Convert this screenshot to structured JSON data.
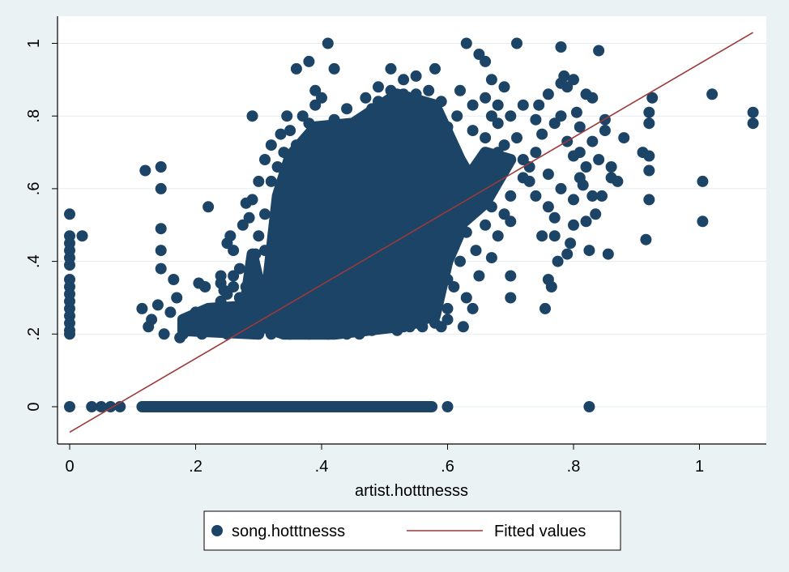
{
  "chart_data": {
    "type": "scatter",
    "xlabel": "artist.hotttnesss",
    "ylabel": "",
    "xlim": [
      0,
      1.1
    ],
    "ylim": [
      -0.08,
      1.05
    ],
    "x_ticks": [
      {
        "value": 0,
        "label": "0"
      },
      {
        "value": 0.2,
        "label": ".2"
      },
      {
        "value": 0.4,
        "label": ".4"
      },
      {
        "value": 0.6,
        "label": ".6"
      },
      {
        "value": 0.8,
        "label": ".8"
      },
      {
        "value": 1,
        "label": "1"
      }
    ],
    "y_ticks": [
      {
        "value": 0,
        "label": "0"
      },
      {
        "value": 0.2,
        "label": ".2"
      },
      {
        "value": 0.4,
        "label": ".4"
      },
      {
        "value": 0.6,
        "label": ".6"
      },
      {
        "value": 0.8,
        "label": ".8"
      },
      {
        "value": 1,
        "label": "1"
      }
    ],
    "grid": "horizontal",
    "legend_position": "bottom",
    "colors": {
      "points": "#1c4466",
      "fit_line": "#9c3a3a",
      "plot_bg": "#ffffff",
      "outer_bg": "#eaf2f3",
      "grid": "#e3ecf0"
    },
    "series": [
      {
        "name": "song.hotttnesss",
        "kind": "scatter",
        "points": [
          [
            0,
            0
          ],
          [
            0,
            0.2
          ],
          [
            0,
            0.21
          ],
          [
            0,
            0.23
          ],
          [
            0,
            0.25
          ],
          [
            0,
            0.27
          ],
          [
            0,
            0.29
          ],
          [
            0,
            0.31
          ],
          [
            0,
            0.33
          ],
          [
            0,
            0.35
          ],
          [
            0,
            0.39
          ],
          [
            0,
            0.41
          ],
          [
            0,
            0.43
          ],
          [
            0,
            0.45
          ],
          [
            0,
            0.47
          ],
          [
            0,
            0.53
          ],
          [
            0.02,
            0.47
          ],
          [
            0.035,
            0
          ],
          [
            0.05,
            0
          ],
          [
            0.065,
            0
          ],
          [
            0.08,
            0
          ],
          [
            0.115,
            0.27
          ],
          [
            0.12,
            0.65
          ],
          [
            0.125,
            0.22
          ],
          [
            0.13,
            0.24
          ],
          [
            0.14,
            0.28
          ],
          [
            0.145,
            0.66
          ],
          [
            0.145,
            0.6
          ],
          [
            0.145,
            0.49
          ],
          [
            0.145,
            0.43
          ],
          [
            0.145,
            0.38
          ],
          [
            0.15,
            0.2
          ],
          [
            0.16,
            0.26
          ],
          [
            0.165,
            0.35
          ],
          [
            0.17,
            0.3
          ],
          [
            0.175,
            0.19
          ],
          [
            0.18,
            0.2
          ],
          [
            0.2,
            0.26
          ],
          [
            0.205,
            0.34
          ],
          [
            0.21,
            0.2
          ],
          [
            0.215,
            0.33
          ],
          [
            0.22,
            0.55
          ],
          [
            0.225,
            0.21
          ],
          [
            0.23,
            0.25
          ],
          [
            0.235,
            0.26
          ],
          [
            0.24,
            0.34
          ],
          [
            0.245,
            0.32
          ],
          [
            0.25,
            0.45
          ],
          [
            0.255,
            0.47
          ],
          [
            0.26,
            0.36
          ],
          [
            0.265,
            0.23
          ],
          [
            0.27,
            0.3
          ],
          [
            0.275,
            0.5
          ],
          [
            0.28,
            0.56
          ],
          [
            0.285,
            0.52
          ],
          [
            0.29,
            0.8
          ],
          [
            0.295,
            0.42
          ],
          [
            0.3,
            0.62
          ],
          [
            0.31,
            0.68
          ],
          [
            0.32,
            0.72
          ],
          [
            0.335,
            0.75
          ],
          [
            0.345,
            0.8
          ],
          [
            0.36,
            0.93
          ],
          [
            0.38,
            0.95
          ],
          [
            0.39,
            0.87
          ],
          [
            0.4,
            0.85
          ],
          [
            0.41,
            1.0
          ],
          [
            0.42,
            0.93
          ],
          [
            0.44,
            0.82
          ],
          [
            0.47,
            0.85
          ],
          [
            0.49,
            0.88
          ],
          [
            0.51,
            0.93
          ],
          [
            0.53,
            0.9
          ],
          [
            0.55,
            0.86
          ],
          [
            0.58,
            0.93
          ],
          [
            0.59,
            0.84
          ],
          [
            0.6,
            0.5
          ],
          [
            0.61,
            0.44
          ],
          [
            0.62,
            0.87
          ],
          [
            0.625,
            0.22
          ],
          [
            0.63,
            1.0
          ],
          [
            0.64,
            0.27
          ],
          [
            0.65,
            0.97
          ],
          [
            0.66,
            0.95
          ],
          [
            0.67,
            0.9
          ],
          [
            0.68,
            0.83
          ],
          [
            0.69,
            0.72
          ],
          [
            0.7,
            0.51
          ],
          [
            0.7,
            0.36
          ],
          [
            0.7,
            0.3
          ],
          [
            0.71,
            1.0
          ],
          [
            0.72,
            0.63
          ],
          [
            0.73,
            0.62
          ],
          [
            0.74,
            0.58
          ],
          [
            0.745,
            0.83
          ],
          [
            0.75,
            0.47
          ],
          [
            0.755,
            0.27
          ],
          [
            0.76,
            0.35
          ],
          [
            0.765,
            0.33
          ],
          [
            0.77,
            0.78
          ],
          [
            0.775,
            0.4
          ],
          [
            0.78,
            0.99
          ],
          [
            0.785,
            0.91
          ],
          [
            0.79,
            0.88
          ],
          [
            0.795,
            0.45
          ],
          [
            0.8,
            0.69
          ],
          [
            0.805,
            0.81
          ],
          [
            0.81,
            0.77
          ],
          [
            0.815,
            0.61
          ],
          [
            0.82,
            0.51
          ],
          [
            0.825,
            0.43
          ],
          [
            0.83,
            0.85
          ],
          [
            0.835,
            0.53
          ],
          [
            0.84,
            0.98
          ],
          [
            0.845,
            0.58
          ],
          [
            0.85,
            0.79
          ],
          [
            0.855,
            0.42
          ],
          [
            0.86,
            0.66
          ],
          [
            0.87,
            0.62
          ],
          [
            0.88,
            0.74
          ],
          [
            0.91,
            0.7
          ],
          [
            0.915,
            0.46
          ],
          [
            0.92,
            0.81
          ],
          [
            0.92,
            0.78
          ],
          [
            0.92,
            0.69
          ],
          [
            0.92,
            0.65
          ],
          [
            0.92,
            0.57
          ],
          [
            0.925,
            0.85
          ],
          [
            1.005,
            0.62
          ],
          [
            1.005,
            0.51
          ],
          [
            1.02,
            0.86
          ],
          [
            1.085,
            0.81
          ],
          [
            1.085,
            0.78
          ],
          [
            0.59,
            0.22
          ],
          [
            0.58,
            0.3
          ],
          [
            0.6,
            0.35
          ],
          [
            0.575,
            0.4
          ],
          [
            0.57,
            0.75
          ],
          [
            0.6,
            0.77
          ],
          [
            0.615,
            0.8
          ],
          [
            0.64,
            0.76
          ],
          [
            0.65,
            0.66
          ],
          [
            0.66,
            0.6
          ],
          [
            0.67,
            0.55
          ],
          [
            0.68,
            0.7
          ],
          [
            0.69,
            0.65
          ],
          [
            0.66,
            0.5
          ],
          [
            0.645,
            0.43
          ],
          [
            0.625,
            0.55
          ],
          [
            0.61,
            0.65
          ],
          [
            0.64,
            0.58
          ],
          [
            0.63,
            0.48
          ],
          [
            0.62,
            0.4
          ],
          [
            0.61,
            0.33
          ],
          [
            0.63,
            0.3
          ],
          [
            0.6,
            0.27
          ],
          [
            0.58,
            0.26
          ],
          [
            0.57,
            0.25
          ],
          [
            0.56,
            0.24
          ],
          [
            0.55,
            0.23
          ],
          [
            0.53,
            0.22
          ],
          [
            0.5,
            0.22
          ],
          [
            0.47,
            0.21
          ],
          [
            0.44,
            0.21
          ],
          [
            0.41,
            0.2
          ],
          [
            0.38,
            0.2
          ],
          [
            0.35,
            0.2
          ],
          [
            0.32,
            0.2
          ],
          [
            0.3,
            0.21
          ],
          [
            0.27,
            0.22
          ],
          [
            0.25,
            0.2
          ],
          [
            0.72,
            0.68
          ],
          [
            0.74,
            0.7
          ],
          [
            0.76,
            0.64
          ],
          [
            0.78,
            0.6
          ],
          [
            0.8,
            0.57
          ],
          [
            0.82,
            0.66
          ],
          [
            0.84,
            0.68
          ],
          [
            0.86,
            0.63
          ],
          [
            0.76,
            0.55
          ],
          [
            0.77,
            0.52
          ],
          [
            0.73,
            0.66
          ],
          [
            0.71,
            0.74
          ],
          [
            0.7,
            0.58
          ],
          [
            0.68,
            0.47
          ],
          [
            0.67,
            0.41
          ],
          [
            0.65,
            0.36
          ],
          [
            0.69,
            0.53
          ],
          [
            0.75,
            0.75
          ],
          [
            0.79,
            0.73
          ],
          [
            0.81,
            0.7
          ],
          [
            0.83,
            0.73
          ],
          [
            0.85,
            0.76
          ],
          [
            0.79,
            0.42
          ],
          [
            0.8,
            0.5
          ],
          [
            0.83,
            0.58
          ],
          [
            0.81,
            0.63
          ],
          [
            0.77,
            0.47
          ],
          [
            0.78,
            0.8
          ],
          [
            0.74,
            0.79
          ],
          [
            0.72,
            0.83
          ],
          [
            0.7,
            0.8
          ],
          [
            0.68,
            0.78
          ],
          [
            0.66,
            0.74
          ],
          [
            0.64,
            0.83
          ],
          [
            0.66,
            0.85
          ],
          [
            0.67,
            0.8
          ],
          [
            0.69,
            0.88
          ],
          [
            0.76,
            0.86
          ],
          [
            0.78,
            0.89
          ],
          [
            0.8,
            0.9
          ],
          [
            0.82,
            0.86
          ],
          [
            0.29,
            0.57
          ],
          [
            0.3,
            0.47
          ],
          [
            0.3,
            0.35
          ],
          [
            0.3,
            0.28
          ],
          [
            0.28,
            0.33
          ],
          [
            0.27,
            0.38
          ],
          [
            0.26,
            0.43
          ],
          [
            0.29,
            0.41
          ],
          [
            0.31,
            0.53
          ],
          [
            0.31,
            0.43
          ],
          [
            0.32,
            0.62
          ],
          [
            0.33,
            0.66
          ],
          [
            0.32,
            0.3
          ],
          [
            0.33,
            0.25
          ],
          [
            0.34,
            0.7
          ],
          [
            0.35,
            0.76
          ],
          [
            0.36,
            0.72
          ],
          [
            0.37,
            0.8
          ],
          [
            0.38,
            0.78
          ],
          [
            0.39,
            0.83
          ],
          [
            0.42,
            0.79
          ],
          [
            0.43,
            0.76
          ],
          [
            0.46,
            0.79
          ],
          [
            0.48,
            0.82
          ],
          [
            0.5,
            0.8
          ],
          [
            0.52,
            0.84
          ],
          [
            0.54,
            0.82
          ],
          [
            0.56,
            0.8
          ],
          [
            0.57,
            0.87
          ],
          [
            0.55,
            0.91
          ],
          [
            0.53,
            0.86
          ],
          [
            0.51,
            0.87
          ],
          [
            0.49,
            0.84
          ],
          [
            0.45,
            0.77
          ],
          [
            0.47,
            0.76
          ],
          [
            0.44,
            0.2
          ],
          [
            0.46,
            0.2
          ],
          [
            0.48,
            0.21
          ],
          [
            0.52,
            0.21
          ],
          [
            0.54,
            0.22
          ],
          [
            0.56,
            0.22
          ],
          [
            0.58,
            0.23
          ],
          [
            0.6,
            0.24
          ],
          [
            0.28,
            0.25
          ],
          [
            0.26,
            0.27
          ],
          [
            0.24,
            0.29
          ],
          [
            0.22,
            0.22
          ],
          [
            0.2,
            0.24
          ],
          [
            0.19,
            0.21
          ],
          [
            0.23,
            0.27
          ],
          [
            0.25,
            0.31
          ],
          [
            0.27,
            0.3
          ],
          [
            0.28,
            0.28
          ],
          [
            0.26,
            0.33
          ],
          [
            0.24,
            0.36
          ],
          [
            0.12,
            0
          ],
          [
            0.14,
            0
          ],
          [
            0.16,
            0
          ],
          [
            0.18,
            0
          ],
          [
            0.2,
            0
          ],
          [
            0.22,
            0
          ],
          [
            0.24,
            0
          ],
          [
            0.26,
            0
          ],
          [
            0.28,
            0
          ],
          [
            0.3,
            0
          ],
          [
            0.32,
            0
          ],
          [
            0.34,
            0
          ],
          [
            0.36,
            0
          ],
          [
            0.38,
            0
          ],
          [
            0.4,
            0
          ],
          [
            0.42,
            0
          ],
          [
            0.44,
            0
          ],
          [
            0.46,
            0
          ],
          [
            0.48,
            0
          ],
          [
            0.5,
            0
          ],
          [
            0.52,
            0
          ],
          [
            0.54,
            0
          ],
          [
            0.55,
            0
          ],
          [
            0.57,
            0
          ],
          [
            0.6,
            0
          ],
          [
            0.825,
            0
          ]
        ]
      },
      {
        "name": "Fitted values",
        "kind": "line",
        "points": [
          [
            0,
            -0.07
          ],
          [
            1.085,
            1.03
          ]
        ]
      }
    ]
  }
}
